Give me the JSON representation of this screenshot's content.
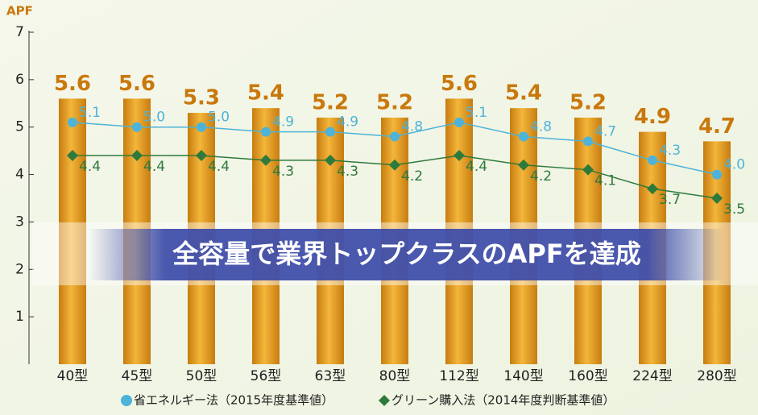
{
  "chart_data": {
    "type": "bar",
    "y_label": "APF",
    "annotation": "全容量で業界トップクラスのAPFを達成",
    "categories": [
      "40型",
      "45型",
      "50型",
      "56型",
      "63型",
      "80型",
      "112型",
      "140型",
      "160型",
      "224型",
      "280型"
    ],
    "ylim": [
      0,
      7
    ],
    "yticks": [
      1,
      2,
      3,
      4,
      5,
      6,
      7
    ],
    "series": [
      {
        "type": "bar",
        "color": "#e29a1c",
        "label_color": "#c9780c",
        "values": [
          5.6,
          5.6,
          5.3,
          5.4,
          5.2,
          5.2,
          5.6,
          5.4,
          5.2,
          4.9,
          4.7
        ]
      },
      {
        "type": "line",
        "marker": "circle",
        "name": "省エネルギー法（2015年度基準値）",
        "color": "#4db3d9",
        "values": [
          5.1,
          5.0,
          5.0,
          4.9,
          4.9,
          4.8,
          5.1,
          4.8,
          4.7,
          4.3,
          4.0
        ],
        "value_labels": [
          "5.1",
          "5.0",
          "5.0",
          "4.9",
          "4.9",
          "4.8",
          "5.1",
          "4.8",
          "4.7",
          "4.3",
          "4.0"
        ]
      },
      {
        "type": "line",
        "marker": "diamond",
        "name": "グリーン購入法（2014年度判断基準値）",
        "color": "#2e7a3c",
        "values": [
          4.4,
          4.4,
          4.4,
          4.3,
          4.3,
          4.2,
          4.4,
          4.2,
          4.1,
          3.7,
          3.5
        ]
      }
    ]
  }
}
